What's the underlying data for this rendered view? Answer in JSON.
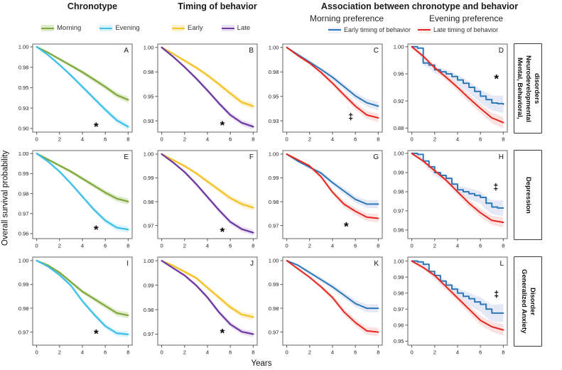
{
  "figure": {
    "col_headers": [
      "Chronotype",
      "Timing of behavior",
      "Association between chronotype  and behavior"
    ],
    "sub_headers": [
      "Morning preference",
      "Evening preference"
    ],
    "ylabel": "Overall survival probability",
    "xlabel": "Years",
    "row_labels": [
      "Mental, Behavioral,\nNeurodevelopmental\ndisorders",
      "Depression",
      "Generalized Anxiety\nDisorder"
    ]
  },
  "legends": {
    "chronotype": [
      {
        "label": "Morning",
        "color": "#7fa93e",
        "band": "#dbe7c3"
      },
      {
        "label": "Evening",
        "color": "#3fc0ea",
        "band": "#d3f0fb"
      }
    ],
    "timing": [
      {
        "label": "Early",
        "color": "#f4c32a",
        "band": "#fdeec3"
      },
      {
        "label": "Late",
        "color": "#6e3ba0",
        "band": "#e7dcf2"
      }
    ],
    "association": [
      {
        "label": "Early timing of behavior",
        "color": "#2d78b8",
        "band": "#dde3f3"
      },
      {
        "label": "Late timing of behavior",
        "color": "#e6261f",
        "band": "#fadbda"
      }
    ]
  },
  "chart_data": [
    {
      "id": "A",
      "type": "line",
      "xlim": [
        -0.35,
        8.35
      ],
      "x": [
        0,
        1,
        2,
        3,
        4,
        5,
        6,
        7,
        8
      ],
      "ylim": [
        0.8955,
        1.0035
      ],
      "yticks": [
        1.0,
        0.975,
        0.95,
        0.925,
        0.9
      ],
      "ytick_labels": [
        "1.00",
        "0.98",
        "0.95",
        "0.93",
        "0.90"
      ],
      "xticks": [
        0,
        2,
        4,
        6,
        8
      ],
      "series": [
        {
          "name": "Morning",
          "color": "#7fa93e",
          "band": "#dbe7c3",
          "values": [
            1.0,
            0.993,
            0.985,
            0.977,
            0.969,
            0.96,
            0.951,
            0.941,
            0.935
          ]
        },
        {
          "name": "Evening",
          "color": "#3fc0ea",
          "band": "#d3f0fb",
          "values": [
            1.0,
            0.99,
            0.978,
            0.965,
            0.951,
            0.937,
            0.923,
            0.91,
            0.902
          ]
        }
      ],
      "symbol": {
        "char": "*",
        "x": 5.2,
        "y": 0.9035
      }
    },
    {
      "id": "B",
      "type": "line",
      "xlim": [
        -0.35,
        8.35
      ],
      "x": [
        0,
        1,
        2,
        3,
        4,
        5,
        6,
        7,
        8
      ],
      "ylim": [
        0.9135,
        1.0035
      ],
      "yticks": [
        1.0,
        0.975,
        0.95,
        0.925
      ],
      "ytick_labels": [
        "1.00",
        "0.98",
        "0.95",
        "0.93"
      ],
      "xticks": [
        0,
        2,
        4,
        6,
        8
      ],
      "series": [
        {
          "name": "Early",
          "color": "#f4c32a",
          "band": "#fdeec3",
          "values": [
            1.0,
            0.9935,
            0.9865,
            0.9795,
            0.9715,
            0.9625,
            0.953,
            0.944,
            0.94
          ]
        },
        {
          "name": "Late",
          "color": "#6e3ba0",
          "band": "#e7dcf2",
          "values": [
            1.0,
            0.9905,
            0.98,
            0.9685,
            0.956,
            0.943,
            0.931,
            0.923,
            0.919
          ]
        }
      ],
      "symbol": {
        "char": "*",
        "x": 5.3,
        "y": 0.9215
      }
    },
    {
      "id": "C",
      "type": "line",
      "xlim": [
        -0.35,
        8.35
      ],
      "x": [
        0,
        1,
        2,
        3,
        4,
        5,
        6,
        7,
        8
      ],
      "ylim": [
        0.9135,
        1.0035
      ],
      "yticks": [
        1.0,
        0.975,
        0.95,
        0.925
      ],
      "ytick_labels": [
        "1.00",
        "0.98",
        "0.95",
        "0.93"
      ],
      "xticks": [
        0,
        2,
        4,
        6,
        8
      ],
      "series": [
        {
          "name": "Early timing of behavior",
          "color": "#2d78b8",
          "band": "#dde3f3",
          "width": 2.0,
          "bandw": [
            1.4,
            6
          ],
          "values": [
            1.0,
            0.9925,
            0.985,
            0.9775,
            0.9695,
            0.96,
            0.9505,
            0.9435,
            0.94
          ]
        },
        {
          "name": "Late timing of behavior",
          "color": "#e6261f",
          "band": "#fadbda",
          "width": 2.0,
          "bandw": [
            1.4,
            6
          ],
          "values": [
            1.0,
            0.9915,
            0.984,
            0.9745,
            0.9635,
            0.9515,
            0.94,
            0.931,
            0.928
          ]
        }
      ],
      "symbol": {
        "char": "‡",
        "x": 5.6,
        "y": 0.9295
      }
    },
    {
      "id": "D",
      "type": "line",
      "xlim": [
        -0.35,
        8.35
      ],
      "x": [
        0,
        1,
        2,
        3,
        4,
        5,
        6,
        7,
        8
      ],
      "ylim": [
        0.874,
        1.004
      ],
      "yticks": [
        1.0,
        0.96,
        0.92,
        0.88
      ],
      "ytick_labels": [
        "1.00",
        "0.96",
        "0.92",
        "0.88"
      ],
      "xticks": [
        0,
        2,
        4,
        6,
        8
      ],
      "series": [
        {
          "name": "Early timing of behavior",
          "color": "#2d78b8",
          "band": "#dde3f3",
          "width": 2.0,
          "step": true,
          "bandw": [
            2,
            12
          ],
          "x": [
            0,
            0.5,
            1,
            1.5,
            2,
            2.5,
            3,
            3.5,
            4,
            4.5,
            5,
            5.5,
            6,
            6.5,
            7,
            7.5,
            8
          ],
          "values": [
            1.0,
            0.998,
            0.976,
            0.973,
            0.966,
            0.963,
            0.96,
            0.956,
            0.951,
            0.946,
            0.94,
            0.934,
            0.927,
            0.922,
            0.917,
            0.916,
            0.915
          ]
        },
        {
          "name": "Late timing of behavior",
          "color": "#e6261f",
          "band": "#fadbda",
          "width": 2.0,
          "bandw": [
            2,
            8
          ],
          "values": [
            1.0,
            0.986,
            0.969,
            0.955,
            0.94,
            0.924,
            0.909,
            0.895,
            0.888
          ]
        }
      ],
      "symbol": {
        "char": "*",
        "x": 7.4,
        "y": 0.954
      }
    },
    {
      "id": "E",
      "type": "line",
      "xlim": [
        -0.35,
        8.35
      ],
      "x": [
        0,
        1,
        2,
        3,
        4,
        5,
        6,
        7,
        8
      ],
      "ylim": [
        0.9575,
        1.0015
      ],
      "yticks": [
        1.0,
        0.99,
        0.98,
        0.97,
        0.96
      ],
      "ytick_labels": [
        "1.00",
        "0.99",
        "0.98",
        "0.97",
        "0.96"
      ],
      "xticks": [
        0,
        2,
        4,
        6,
        8
      ],
      "series": [
        {
          "name": "Morning",
          "color": "#7fa93e",
          "band": "#dbe7c3",
          "values": [
            1.0,
            0.997,
            0.994,
            0.991,
            0.9875,
            0.984,
            0.9805,
            0.9775,
            0.976
          ]
        },
        {
          "name": "Evening",
          "color": "#3fc0ea",
          "band": "#d3f0fb",
          "values": [
            1.0,
            0.996,
            0.991,
            0.985,
            0.9785,
            0.972,
            0.9665,
            0.963,
            0.962
          ]
        }
      ],
      "symbol": {
        "char": "*",
        "x": 5.2,
        "y": 0.9625
      }
    },
    {
      "id": "F",
      "type": "line",
      "xlim": [
        -0.35,
        8.35
      ],
      "x": [
        0,
        1,
        2,
        3,
        4,
        5,
        6,
        7,
        8
      ],
      "ylim": [
        0.9645,
        1.0015
      ],
      "yticks": [
        1.0,
        0.99,
        0.98,
        0.97
      ],
      "ytick_labels": [
        "1.00",
        "0.99",
        "0.98",
        "0.97"
      ],
      "xticks": [
        0,
        2,
        4,
        6,
        8
      ],
      "series": [
        {
          "name": "Early",
          "color": "#f4c32a",
          "band": "#fdeec3",
          "values": [
            1.0,
            0.9975,
            0.995,
            0.992,
            0.9885,
            0.985,
            0.9815,
            0.979,
            0.9775
          ]
        },
        {
          "name": "Late",
          "color": "#6e3ba0",
          "band": "#e7dcf2",
          "values": [
            1.0,
            0.9965,
            0.9925,
            0.9875,
            0.982,
            0.9765,
            0.9715,
            0.9685,
            0.967
          ]
        }
      ],
      "symbol": {
        "char": "*",
        "x": 5.3,
        "y": 0.9678
      }
    },
    {
      "id": "G",
      "type": "line",
      "xlim": [
        -0.35,
        8.35
      ],
      "x": [
        0,
        1,
        2,
        3,
        4,
        5,
        6,
        7,
        8
      ],
      "ylim": [
        0.9645,
        1.0015
      ],
      "yticks": [
        1.0,
        0.99,
        0.98,
        0.97
      ],
      "ytick_labels": [
        "1.00",
        "0.99",
        "0.98",
        "0.97"
      ],
      "xticks": [
        0,
        2,
        4,
        6,
        8
      ],
      "series": [
        {
          "name": "Early timing of behavior",
          "color": "#2d78b8",
          "band": "#dde3f3",
          "width": 2.0,
          "bandw": [
            1.4,
            6
          ],
          "values": [
            1.0,
            0.997,
            0.9945,
            0.992,
            0.988,
            0.9845,
            0.981,
            0.979,
            0.979
          ]
        },
        {
          "name": "Late timing of behavior",
          "color": "#e6261f",
          "band": "#fadbda",
          "width": 2.0,
          "bandw": [
            1.4,
            6
          ],
          "values": [
            1.0,
            0.9975,
            0.995,
            0.9905,
            0.984,
            0.979,
            0.976,
            0.9735,
            0.973
          ]
        }
      ],
      "symbol": {
        "char": "*",
        "x": 5.2,
        "y": 0.97
      }
    },
    {
      "id": "H",
      "type": "line",
      "xlim": [
        -0.35,
        8.35
      ],
      "x": [
        0,
        1,
        2,
        3,
        4,
        5,
        6,
        7,
        8
      ],
      "ylim": [
        0.9555,
        1.0015
      ],
      "yticks": [
        1.0,
        0.99,
        0.98,
        0.97,
        0.96
      ],
      "ytick_labels": [
        "1.00",
        "0.99",
        "0.98",
        "0.97",
        "0.96"
      ],
      "xticks": [
        0,
        2,
        4,
        6,
        8
      ],
      "series": [
        {
          "name": "Early timing of behavior",
          "color": "#2d78b8",
          "band": "#dde3f3",
          "width": 2.0,
          "step": true,
          "bandw": [
            2,
            11
          ],
          "x": [
            0,
            0.5,
            1,
            1.5,
            2,
            2.5,
            3,
            3.5,
            4,
            4.5,
            5,
            5.5,
            6,
            6.5,
            7,
            7.5,
            8
          ],
          "values": [
            1.0,
            0.9995,
            0.996,
            0.993,
            0.99,
            0.9885,
            0.987,
            0.984,
            0.981,
            0.98,
            0.979,
            0.978,
            0.977,
            0.974,
            0.972,
            0.9715,
            0.9715
          ]
        },
        {
          "name": "Late timing of behavior",
          "color": "#e6261f",
          "band": "#fadbda",
          "width": 2.0,
          "bandw": [
            2,
            7
          ],
          "values": [
            1.0,
            0.996,
            0.991,
            0.986,
            0.98,
            0.974,
            0.969,
            0.965,
            0.964
          ]
        }
      ],
      "symbol": {
        "char": "‡",
        "x": 7.35,
        "y": 0.9825
      }
    },
    {
      "id": "I",
      "type": "line",
      "xlim": [
        -0.35,
        8.35
      ],
      "x": [
        0,
        1,
        2,
        3,
        4,
        5,
        6,
        7,
        8
      ],
      "ylim": [
        0.9645,
        1.0015
      ],
      "yticks": [
        1.0,
        0.99,
        0.98,
        0.97
      ],
      "ytick_labels": [
        "1.00",
        "0.99",
        "0.98",
        "0.97"
      ],
      "xticks": [
        0,
        2,
        4,
        6,
        8
      ],
      "series": [
        {
          "name": "Morning",
          "color": "#7fa93e",
          "band": "#dbe7c3",
          "values": [
            1.0,
            0.998,
            0.995,
            0.991,
            0.987,
            0.984,
            0.981,
            0.978,
            0.977
          ]
        },
        {
          "name": "Evening",
          "color": "#3fc0ea",
          "band": "#d3f0fb",
          "values": [
            1.0,
            0.9975,
            0.994,
            0.9895,
            0.983,
            0.9775,
            0.9725,
            0.9695,
            0.969
          ]
        }
      ],
      "symbol": {
        "char": "*",
        "x": 5.2,
        "y": 0.9697
      }
    },
    {
      "id": "J",
      "type": "line",
      "xlim": [
        -0.35,
        8.35
      ],
      "x": [
        0,
        1,
        2,
        3,
        4,
        5,
        6,
        7,
        8
      ],
      "ylim": [
        0.9655,
        1.0015
      ],
      "yticks": [
        1.0,
        0.99,
        0.98,
        0.97
      ],
      "ytick_labels": [
        "1.00",
        "0.99",
        "0.98",
        "0.97"
      ],
      "xticks": [
        0,
        2,
        4,
        6,
        8
      ],
      "series": [
        {
          "name": "Early",
          "color": "#f4c32a",
          "band": "#fdeec3",
          "values": [
            1.0,
            0.998,
            0.9955,
            0.993,
            0.989,
            0.985,
            0.981,
            0.978,
            0.977
          ]
        },
        {
          "name": "Late",
          "color": "#6e3ba0",
          "band": "#e7dcf2",
          "values": [
            1.0,
            0.997,
            0.994,
            0.99,
            0.985,
            0.979,
            0.974,
            0.971,
            0.97
          ]
        }
      ],
      "symbol": {
        "char": "*",
        "x": 5.3,
        "y": 0.9708
      }
    },
    {
      "id": "K",
      "type": "line",
      "xlim": [
        -0.35,
        8.35
      ],
      "x": [
        0,
        1,
        2,
        3,
        4,
        5,
        6,
        7,
        8
      ],
      "ylim": [
        0.9645,
        1.0015
      ],
      "yticks": [
        1.0,
        0.99,
        0.98,
        0.97
      ],
      "ytick_labels": [
        "1.00",
        "0.99",
        "0.98",
        "0.97"
      ],
      "xticks": [
        0,
        2,
        4,
        6,
        8
      ],
      "series": [
        {
          "name": "Early timing of behavior",
          "color": "#2d78b8",
          "band": "#dde3f3",
          "width": 2.0,
          "bandw": [
            1.4,
            6
          ],
          "values": [
            1.0,
            0.998,
            0.995,
            0.992,
            0.989,
            0.9855,
            0.982,
            0.98,
            0.98
          ]
        },
        {
          "name": "Late timing of behavior",
          "color": "#e6261f",
          "band": "#fadbda",
          "width": 2.0,
          "bandw": [
            1.4,
            6
          ],
          "values": [
            1.0,
            0.9965,
            0.993,
            0.989,
            0.9845,
            0.9785,
            0.974,
            0.9705,
            0.97
          ]
        }
      ],
      "symbol": null
    },
    {
      "id": "L",
      "type": "line",
      "xlim": [
        -0.35,
        8.35
      ],
      "x": [
        0,
        1,
        2,
        3,
        4,
        5,
        6,
        7,
        8
      ],
      "ylim": [
        0.9475,
        1.0025
      ],
      "yticks": [
        1.0,
        0.99,
        0.98,
        0.97,
        0.96,
        0.95
      ],
      "ytick_labels": [
        "1.00",
        "0.99",
        "0.98",
        "0.97",
        "0.96",
        "0.95"
      ],
      "xticks": [
        0,
        2,
        4,
        6,
        8
      ],
      "series": [
        {
          "name": "Early timing of behavior",
          "color": "#2d78b8",
          "band": "#dde3f3",
          "width": 2.0,
          "step": true,
          "bandw": [
            2,
            13
          ],
          "x": [
            0,
            0.5,
            1,
            1.5,
            2,
            2.5,
            3,
            3.5,
            4,
            4.5,
            5,
            5.5,
            6,
            6.5,
            7,
            7.5,
            8
          ],
          "values": [
            1.0,
            0.9995,
            0.998,
            0.9935,
            0.991,
            0.9875,
            0.985,
            0.9825,
            0.98,
            0.978,
            0.9765,
            0.9745,
            0.973,
            0.97,
            0.9675,
            0.9675,
            0.9675
          ]
        },
        {
          "name": "Late timing of behavior",
          "color": "#e6261f",
          "band": "#fadbda",
          "width": 2.0,
          "bandw": [
            2,
            8
          ],
          "values": [
            1.0,
            0.996,
            0.991,
            0.984,
            0.977,
            0.97,
            0.963,
            0.959,
            0.957
          ]
        }
      ],
      "symbol": {
        "char": "‡",
        "x": 7.4,
        "y": 0.9795
      }
    }
  ]
}
